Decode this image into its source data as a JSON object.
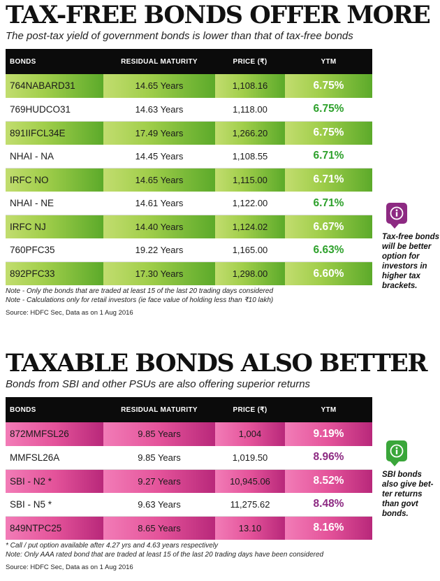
{
  "section1": {
    "title": "TAX-FREE BONDS OFFER MORE",
    "subtitle": "The post-tax yield of government bonds is lower than that of tax-free bonds",
    "headers": {
      "bonds": "BONDS",
      "maturity": "RESIDUAL MATURITY",
      "price": "PRICE (₹)",
      "ytm": "YTM"
    },
    "rows": [
      {
        "bond": "764NABARD31",
        "maturity": "14.65 Years",
        "price": "1,108.16",
        "ytm": "6.75%"
      },
      {
        "bond": "769HUDCO31",
        "maturity": "14.63 Years",
        "price": "1,118.00",
        "ytm": "6.75%"
      },
      {
        "bond": "891IIFCL34E",
        "maturity": "17.49 Years",
        "price": "1,266.20",
        "ytm": "6.75%"
      },
      {
        "bond": "NHAI - NA",
        "maturity": "14.45 Years",
        "price": "1,108.55",
        "ytm": "6.71%"
      },
      {
        "bond": "IRFC NO",
        "maturity": "14.65 Years",
        "price": "1,115.00",
        "ytm": "6.71%"
      },
      {
        "bond": "NHAI - NE",
        "maturity": "14.61 Years",
        "price": "1,122.00",
        "ytm": "6.71%"
      },
      {
        "bond": "IRFC NJ",
        "maturity": "14.40 Years",
        "price": "1,124.02",
        "ytm": "6.67%"
      },
      {
        "bond": "760PFC35",
        "maturity": "19.22 Years",
        "price": "1,165.00",
        "ytm": "6.63%"
      },
      {
        "bond": "892PFC33",
        "maturity": "17.30 Years",
        "price": "1,298.00",
        "ytm": "6.60%"
      }
    ],
    "notes": [
      "Note - Only the bonds that are traded at least 15 of the last 20 trading days considered",
      "Note - Calculations only for retail investors (ie face value of holding less than ₹10 lakh)"
    ],
    "source": "Source: HDFC Sec, Data as on 1 Aug 2016"
  },
  "section2": {
    "title": "TAXABLE BONDS ALSO BETTER",
    "subtitle": "Bonds from SBI and other PSUs are also offering superior returns",
    "headers": {
      "bonds": "BONDS",
      "maturity": "RESIDUAL MATURITY",
      "price": "PRICE (₹)",
      "ytm": "YTM"
    },
    "rows": [
      {
        "bond": "872MMFSL26",
        "maturity": "9.85 Years",
        "price": "1,004",
        "ytm": "9.19%"
      },
      {
        "bond": "MMFSL26A",
        "maturity": "9.85 Years",
        "price": "1,019.50",
        "ytm": "8.96%"
      },
      {
        "bond": "SBI - N2 *",
        "maturity": "9.27 Years",
        "price": "10,945.06",
        "ytm": "8.52%"
      },
      {
        "bond": "SBI - N5 *",
        "maturity": "9.63 Years",
        "price": "11,275.62",
        "ytm": "8.48%"
      },
      {
        "bond": "849NTPC25",
        "maturity": "8.65 Years",
        "price": "13.10",
        "ytm": "8.16%"
      }
    ],
    "notes": [
      "* Call / put option available after 4.27 yrs and 4.63 years respectively",
      "Note: Only AAA rated bond that are traded at least 15 of the last 20 trading days have been considered"
    ],
    "source": "Source: HDFC Sec, Data as on 1 Aug 2016"
  },
  "sidenotes": {
    "first": {
      "icon": "info-icon",
      "color": "#8d2a82",
      "text": "Tax-free bonds will be better option for investors in higher tax brackets."
    },
    "second": {
      "icon": "info-icon",
      "color": "#3aa63a",
      "text": "SBI bonds also give bet-ter returns than govt bonds."
    }
  },
  "colors": {
    "green_band": "#7cbd3a",
    "green_text": "#2ea12c",
    "pink_band": "#e4539a",
    "purple_text": "#8d2a82",
    "header_bg": "#0b0b0b"
  }
}
